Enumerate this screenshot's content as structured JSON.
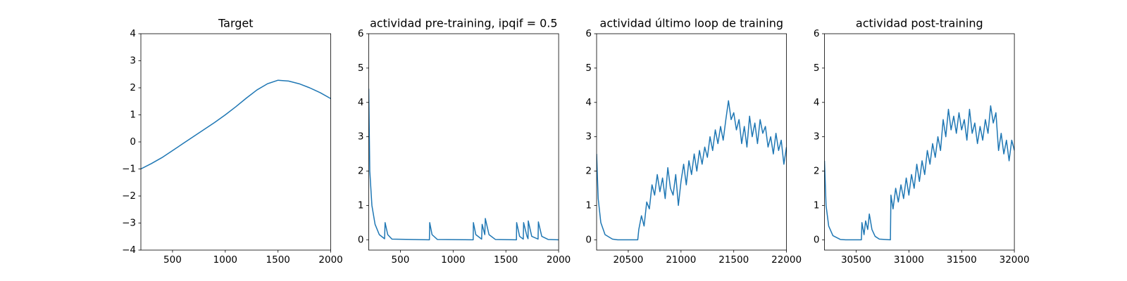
{
  "chart_data": [
    {
      "type": "line",
      "title": "Target",
      "color": "#1f77b4",
      "x": [
        200,
        300,
        400,
        500,
        600,
        700,
        800,
        900,
        1000,
        1100,
        1200,
        1300,
        1400,
        1500,
        1600,
        1700,
        1800,
        1900,
        2000
      ],
      "values": [
        -1.0,
        -0.8,
        -0.58,
        -0.32,
        -0.06,
        0.2,
        0.46,
        0.72,
        1.0,
        1.3,
        1.62,
        1.92,
        2.15,
        2.28,
        2.25,
        2.15,
        2.0,
        1.82,
        1.6
      ],
      "xlim": [
        200,
        2000
      ],
      "xticks": [
        500,
        1000,
        1500,
        2000
      ],
      "ylim": [
        -4,
        4
      ],
      "yticks": [
        {
          "value": -4,
          "label": "−4"
        },
        {
          "value": -3,
          "label": "−3"
        },
        {
          "value": -2,
          "label": "−2"
        },
        {
          "value": -1,
          "label": "−1"
        },
        0,
        1,
        2,
        3,
        4
      ]
    },
    {
      "type": "line",
      "title": "actividad pre-training, ipqif = 0.5",
      "color": "#1f77b4",
      "x": [
        200,
        210,
        230,
        260,
        300,
        350,
        355,
        380,
        420,
        775,
        778,
        800,
        850,
        1190,
        1192,
        1215,
        1270,
        1275,
        1300,
        1305,
        1340,
        1400,
        1600,
        1602,
        1630,
        1665,
        1668,
        1700,
        1710,
        1712,
        1745,
        1805,
        1808,
        1840,
        1900,
        2000
      ],
      "values": [
        4.4,
        2.0,
        1.0,
        0.45,
        0.15,
        0.03,
        0.5,
        0.15,
        0.02,
        0,
        0.5,
        0.15,
        0.01,
        0,
        0.5,
        0.15,
        0.02,
        0.45,
        0.15,
        0.62,
        0.15,
        0.01,
        0,
        0.5,
        0.1,
        0.02,
        0.5,
        0.1,
        0.03,
        0.55,
        0.1,
        0.02,
        0.52,
        0.1,
        0.01,
        0
      ],
      "xlim": [
        200,
        2000
      ],
      "xticks": [
        500,
        1000,
        1500,
        2000
      ],
      "ylim": [
        -0.3,
        6
      ],
      "yticks": [
        0,
        1,
        2,
        3,
        4,
        5,
        6
      ]
    },
    {
      "type": "line",
      "title": "actividad último loop de training",
      "color": "#1f77b4",
      "x": [
        20200,
        20215,
        20240,
        20280,
        20350,
        20400,
        20500,
        20590,
        20600,
        20625,
        20650,
        20675,
        20700,
        20725,
        20750,
        20775,
        20800,
        20825,
        20850,
        20875,
        20900,
        20925,
        20950,
        20975,
        21000,
        21025,
        21050,
        21075,
        21100,
        21125,
        21150,
        21175,
        21200,
        21225,
        21250,
        21275,
        21300,
        21325,
        21350,
        21375,
        21400,
        21425,
        21450,
        21475,
        21500,
        21525,
        21550,
        21575,
        21600,
        21625,
        21650,
        21675,
        21700,
        21725,
        21750,
        21775,
        21800,
        21825,
        21850,
        21875,
        21900,
        21925,
        21950,
        21975,
        22000
      ],
      "values": [
        2.5,
        1.2,
        0.5,
        0.15,
        0.02,
        0,
        0,
        0,
        0.3,
        0.7,
        0.4,
        1.1,
        0.9,
        1.6,
        1.3,
        1.9,
        1.4,
        1.8,
        1.2,
        2.1,
        1.5,
        1.3,
        1.9,
        1.0,
        1.7,
        2.2,
        1.6,
        2.3,
        1.9,
        2.5,
        2.0,
        2.6,
        2.2,
        2.7,
        2.4,
        3.0,
        2.6,
        3.2,
        2.8,
        3.3,
        2.9,
        3.5,
        4.05,
        3.5,
        3.7,
        3.2,
        3.5,
        2.8,
        3.3,
        2.7,
        3.6,
        3.0,
        3.4,
        2.8,
        3.5,
        3.1,
        3.3,
        2.7,
        3.0,
        2.5,
        3.1,
        2.6,
        2.9,
        2.2,
        2.7
      ],
      "xlim": [
        20200,
        22000
      ],
      "xticks": [
        20500,
        21000,
        21500,
        22000
      ],
      "ylim": [
        -0.3,
        6
      ],
      "yticks": [
        0,
        1,
        2,
        3,
        4,
        5,
        6
      ]
    },
    {
      "type": "line",
      "title": "actividad post-training",
      "color": "#1f77b4",
      "x": [
        30200,
        30215,
        30240,
        30280,
        30350,
        30400,
        30550,
        30555,
        30575,
        30590,
        30610,
        30625,
        30650,
        30680,
        30720,
        30825,
        30830,
        30850,
        30875,
        30900,
        30925,
        30950,
        30975,
        31000,
        31025,
        31050,
        31075,
        31100,
        31125,
        31150,
        31175,
        31200,
        31225,
        31250,
        31275,
        31300,
        31325,
        31350,
        31375,
        31400,
        31425,
        31450,
        31475,
        31500,
        31525,
        31550,
        31575,
        31600,
        31625,
        31650,
        31675,
        31700,
        31725,
        31750,
        31775,
        31800,
        31825,
        31850,
        31875,
        31900,
        31925,
        31950,
        31975,
        32000
      ],
      "values": [
        2.3,
        1.0,
        0.4,
        0.12,
        0.01,
        0,
        0,
        0.5,
        0.15,
        0.55,
        0.3,
        0.75,
        0.3,
        0.1,
        0.02,
        0,
        1.3,
        0.9,
        1.5,
        1.1,
        1.6,
        1.2,
        1.8,
        1.3,
        1.9,
        1.5,
        2.2,
        1.7,
        2.3,
        1.9,
        2.6,
        2.2,
        2.8,
        2.4,
        3.0,
        2.6,
        3.5,
        3.0,
        3.8,
        3.2,
        3.6,
        3.1,
        3.7,
        3.2,
        3.5,
        2.9,
        3.8,
        3.1,
        3.4,
        2.8,
        3.3,
        2.9,
        3.5,
        3.1,
        3.9,
        3.4,
        3.7,
        2.6,
        3.1,
        2.5,
        2.9,
        2.3,
        2.9,
        2.6
      ],
      "xlim": [
        30200,
        32000
      ],
      "xticks": [
        30500,
        31000,
        31500,
        32000
      ],
      "ylim": [
        -0.3,
        6
      ],
      "yticks": [
        0,
        1,
        2,
        3,
        4,
        5,
        6
      ]
    }
  ]
}
